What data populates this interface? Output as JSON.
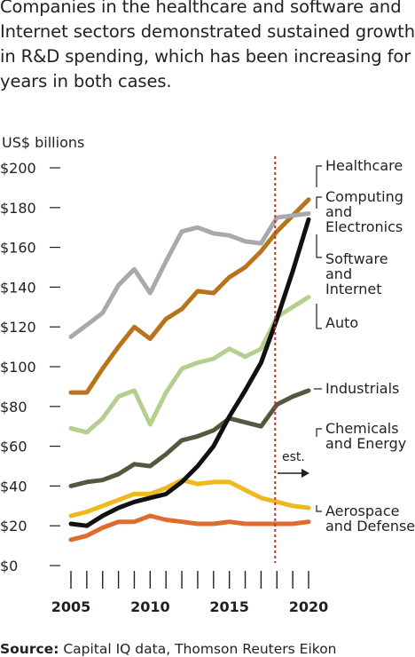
{
  "description": "Companies in the healthcare and software and Internet sectors demonstrated sustained growth in R&D spending, which has been increasing for years in both cases.",
  "source": {
    "label": "Source:",
    "text": "Capital IQ data, Thomson Reuters Eikon"
  },
  "chart_data": {
    "type": "line",
    "ylabel": "US$ billions",
    "ylim": [
      0,
      200
    ],
    "yticks": [
      "$200",
      "$180",
      "$160",
      "$140",
      "$120",
      "$100",
      "$80",
      "$60",
      "$40",
      "$20",
      "$0"
    ],
    "ytick_values": [
      200,
      180,
      160,
      140,
      120,
      100,
      80,
      60,
      40,
      20,
      0
    ],
    "xlim": [
      2005,
      2020
    ],
    "xtick_labels": [
      "2005",
      "2010",
      "2015",
      "2020"
    ],
    "x": [
      2005,
      2006,
      2007,
      2008,
      2009,
      2010,
      2011,
      2012,
      2013,
      2014,
      2015,
      2016,
      2017,
      2018,
      2019,
      2020
    ],
    "estimate_start": 2018,
    "estimate_label": "est.",
    "grid": false,
    "legend": "right, labels at line ends",
    "series": [
      {
        "name": "Healthcare",
        "color": "#a7a9ac",
        "values": [
          115,
          121,
          127,
          141,
          149,
          137,
          153,
          168,
          170,
          167,
          166,
          163,
          162,
          175,
          176,
          177
        ]
      },
      {
        "name": "Computing and Electronics",
        "color": "#b8741a",
        "values": [
          87,
          87,
          99,
          110,
          120,
          114,
          124,
          129,
          138,
          137,
          145,
          150,
          158,
          168,
          176,
          184
        ]
      },
      {
        "name": "Software and Internet",
        "color": "#111111",
        "values": [
          21,
          20,
          25,
          29,
          32,
          34,
          36,
          42,
          50,
          60,
          75,
          88,
          102,
          124,
          148,
          174
        ]
      },
      {
        "name": "Auto",
        "color": "#b5cf8f",
        "values": [
          69,
          67,
          74,
          85,
          88,
          71,
          87,
          99,
          102,
          104,
          109,
          105,
          109,
          125,
          130,
          135
        ]
      },
      {
        "name": "Industrials",
        "color": "#58563f",
        "values": [
          40,
          42,
          43,
          46,
          51,
          50,
          56,
          63,
          65,
          68,
          74,
          72,
          70,
          81,
          85,
          88
        ]
      },
      {
        "name": "Chemicals and Energy",
        "color": "#f0b81f",
        "values": [
          25,
          27,
          30,
          33,
          36,
          36,
          39,
          43,
          41,
          42,
          42,
          38,
          34,
          32,
          30,
          29
        ]
      },
      {
        "name": "Aerospace and Defense",
        "color": "#e06b2f",
        "values": [
          13,
          15,
          19,
          22,
          22,
          25,
          23,
          22,
          21,
          21,
          22,
          21,
          21,
          21,
          21,
          22
        ]
      }
    ]
  }
}
